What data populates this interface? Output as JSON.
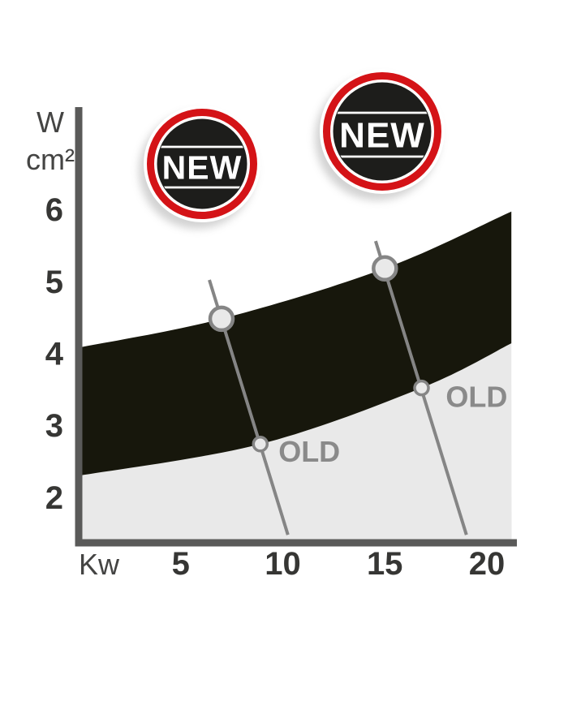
{
  "page": {
    "background": "#ffffff"
  },
  "colors": {
    "new_band": "#17170c",
    "old_band": "#e9e9e9",
    "badge_red": "#d41317",
    "badge_black": "#1d1d1b",
    "badge_text": "#ffffff",
    "annotation_gray": "#858585",
    "marker_fill": "#e9e9e9",
    "axis_gray": "#5a5a59",
    "tick_text": "#363634",
    "old_label_gray": "#8a8a8a"
  },
  "badges": [
    {
      "label": "NEW"
    },
    {
      "label": "NEW"
    }
  ],
  "axis": {
    "y_unit_numerator": "W",
    "y_unit_denominator": "cm²",
    "x_unit": "Kw"
  },
  "chart_data": {
    "type": "area",
    "title": "",
    "xlabel": "Kw",
    "ylabel": "W/cm²",
    "x_ticks": [
      5,
      10,
      15,
      20
    ],
    "y_ticks": [
      6,
      5,
      4,
      3,
      2
    ],
    "xlim": [
      0,
      21.2
    ],
    "ylim": [
      1.45,
      7.4
    ],
    "grid": false,
    "legend": "badges NEW (dark band) / inline labels OLD (light band)",
    "series": [
      {
        "name": "NEW",
        "kind": "band",
        "fill": "#17170c",
        "top_curve": [
          [
            0,
            4.08
          ],
          [
            7,
            4.48
          ],
          [
            15,
            5.18
          ],
          [
            21.2,
            5.97
          ]
        ],
        "bottom_boundary": "OLD top curve"
      },
      {
        "name": "OLD",
        "kind": "band",
        "fill": "#e9e9e9",
        "top_curve": [
          [
            0,
            2.3
          ],
          [
            8.9,
            2.74
          ],
          [
            16.8,
            3.52
          ],
          [
            21.2,
            4.14
          ]
        ],
        "bottom_boundary": "x-axis"
      }
    ],
    "annotations": {
      "pointer_lines": [
        {
          "from": [
            6.4,
            5.02
          ],
          "to": [
            10.25,
            1.48
          ]
        },
        {
          "from": [
            14.55,
            5.56
          ],
          "to": [
            19.0,
            1.48
          ]
        }
      ],
      "markers": [
        {
          "kw": 7.0,
          "w": 4.48,
          "size": "large",
          "on": "NEW top curve"
        },
        {
          "kw": 8.9,
          "w": 2.74,
          "size": "small",
          "on": "OLD top curve"
        },
        {
          "kw": 15.0,
          "w": 5.18,
          "size": "large",
          "on": "NEW top curve"
        },
        {
          "kw": 16.8,
          "w": 3.52,
          "size": "small",
          "on": "OLD top curve"
        }
      ],
      "old_labels": [
        {
          "text": "OLD",
          "kw": 11.3,
          "w": 2.63
        },
        {
          "text": "OLD",
          "kw": 19.5,
          "w": 3.39
        }
      ]
    }
  }
}
